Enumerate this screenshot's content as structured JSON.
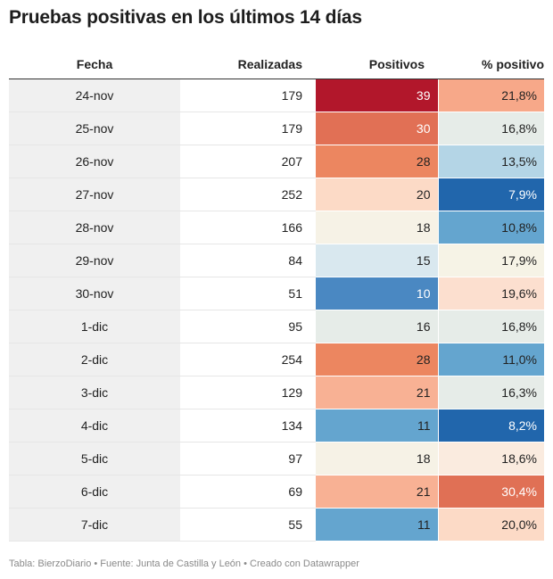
{
  "title": "Pruebas positivas en los últimos 14 días",
  "footer": "Tabla: BierzoDiario • Fuente: Junta de Castilla y León • Creado con Datawrapper",
  "chart_data": {
    "type": "table",
    "columns": [
      "Fecha",
      "Realizadas",
      "Positivos",
      "% positivo"
    ],
    "rows": [
      {
        "fecha": "24-nov",
        "realizadas": "179",
        "positivos": "39",
        "pct": "21,8%",
        "pos_color": "#b2172b",
        "pct_color": "#f7a889"
      },
      {
        "fecha": "25-nov",
        "realizadas": "179",
        "positivos": "30",
        "pct": "16,8%",
        "pos_color": "#e17055",
        "pct_color": "#e6ece8"
      },
      {
        "fecha": "26-nov",
        "realizadas": "207",
        "positivos": "28",
        "pct": "13,5%",
        "pos_color": "#ec8660",
        "pct_color": "#b4d5e6"
      },
      {
        "fecha": "27-nov",
        "realizadas": "252",
        "positivos": "20",
        "pct": "7,9%",
        "pos_color": "#fcdac6",
        "pct_color": "#2166ac"
      },
      {
        "fecha": "28-nov",
        "realizadas": "166",
        "positivos": "18",
        "pct": "10,8%",
        "pos_color": "#f6f2e6",
        "pct_color": "#64a5cf"
      },
      {
        "fecha": "29-nov",
        "realizadas": "84",
        "positivos": "15",
        "pct": "17,9%",
        "pos_color": "#d9e8ef",
        "pct_color": "#f6f3e6"
      },
      {
        "fecha": "30-nov",
        "realizadas": "51",
        "positivos": "10",
        "pct": "19,6%",
        "pos_color": "#4a88c2",
        "pct_color": "#fcdfcf"
      },
      {
        "fecha": "1-dic",
        "realizadas": "95",
        "positivos": "16",
        "pct": "16,8%",
        "pos_color": "#e6ece8",
        "pct_color": "#e6ece8"
      },
      {
        "fecha": "2-dic",
        "realizadas": "254",
        "positivos": "28",
        "pct": "11,0%",
        "pos_color": "#ec8660",
        "pct_color": "#64a5cf"
      },
      {
        "fecha": "3-dic",
        "realizadas": "129",
        "positivos": "21",
        "pct": "16,3%",
        "pos_color": "#f8b194",
        "pct_color": "#e6ece8"
      },
      {
        "fecha": "4-dic",
        "realizadas": "134",
        "positivos": "11",
        "pct": "8,2%",
        "pos_color": "#64a5cf",
        "pct_color": "#2166ac"
      },
      {
        "fecha": "5-dic",
        "realizadas": "97",
        "positivos": "18",
        "pct": "18,6%",
        "pos_color": "#f6f2e6",
        "pct_color": "#faebdf"
      },
      {
        "fecha": "6-dic",
        "realizadas": "69",
        "positivos": "21",
        "pct": "30,4%",
        "pos_color": "#f8b194",
        "pct_color": "#e07055"
      },
      {
        "fecha": "7-dic",
        "realizadas": "55",
        "positivos": "11",
        "pct": "20,0%",
        "pos_color": "#64a5cf",
        "pct_color": "#fcdac6"
      }
    ]
  }
}
